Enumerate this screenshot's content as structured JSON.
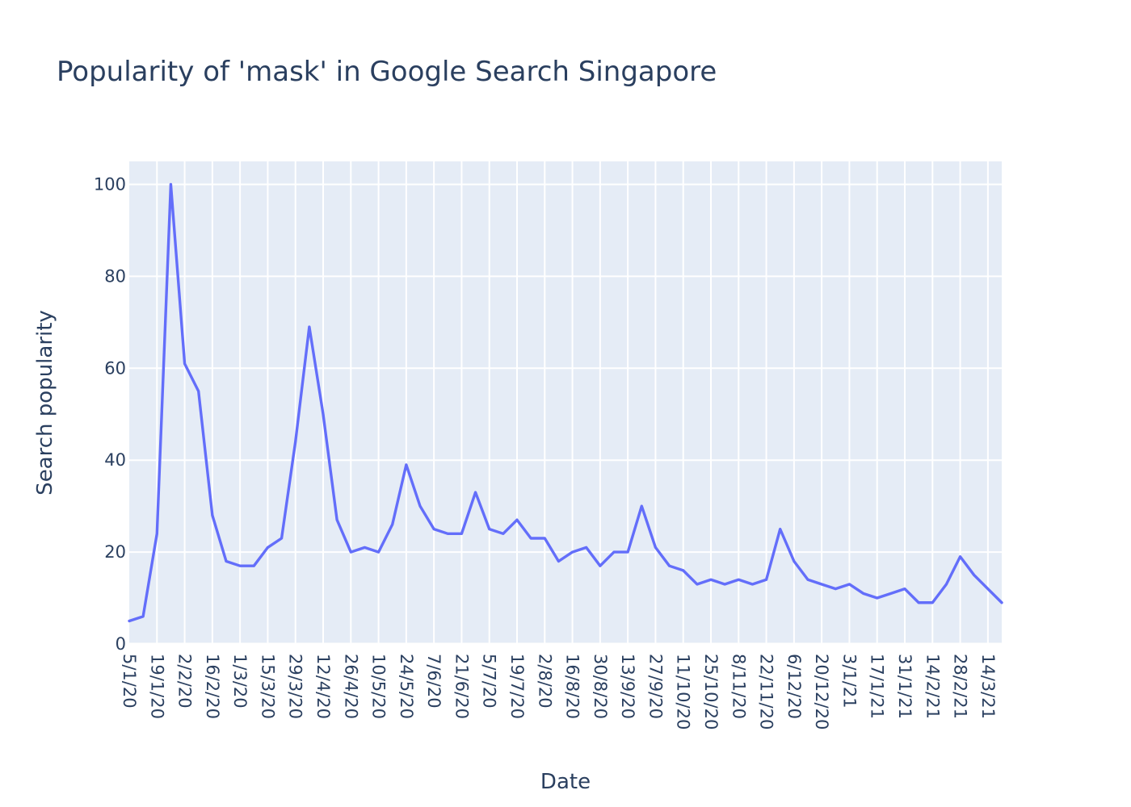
{
  "chart_data": {
    "type": "line",
    "title": "Popularity of 'mask' in Google Search Singapore",
    "xlabel": "Date",
    "ylabel": "Search popularity",
    "ylim": [
      0,
      105
    ],
    "yticks": [
      0,
      20,
      40,
      60,
      80,
      100
    ],
    "xtick_labels": [
      "5/1/20",
      "19/1/20",
      "2/2/20",
      "16/2/20",
      "1/3/20",
      "15/3/20",
      "29/3/20",
      "12/4/20",
      "26/4/20",
      "10/5/20",
      "24/5/20",
      "7/6/20",
      "21/6/20",
      "5/7/20",
      "19/7/20",
      "2/8/20",
      "16/8/20",
      "30/8/20",
      "13/9/20",
      "27/9/20",
      "11/10/20",
      "25/10/20",
      "8/11/20",
      "22/11/20",
      "6/12/20",
      "20/12/20",
      "3/1/21",
      "17/1/21",
      "31/1/21",
      "14/2/21",
      "28/2/21",
      "14/3/21"
    ],
    "grid": true,
    "colors": {
      "line": "#636efa",
      "plot_bg": "#e5ecf6",
      "grid": "#ffffff",
      "text": "#2a3f5f"
    },
    "series": [
      {
        "x": [
          "5/1/20",
          "12/1/20",
          "19/1/20",
          "26/1/20",
          "2/2/20",
          "9/2/20",
          "16/2/20",
          "23/2/20",
          "1/3/20",
          "8/3/20",
          "15/3/20",
          "22/3/20",
          "29/3/20",
          "5/4/20",
          "12/4/20",
          "19/4/20",
          "26/4/20",
          "3/5/20",
          "10/5/20",
          "17/5/20",
          "24/5/20",
          "31/5/20",
          "7/6/20",
          "14/6/20",
          "21/6/20",
          "28/6/20",
          "5/7/20",
          "12/7/20",
          "19/7/20",
          "26/7/20",
          "2/8/20",
          "9/8/20",
          "16/8/20",
          "23/8/20",
          "30/8/20",
          "6/9/20",
          "13/9/20",
          "20/9/20",
          "27/9/20",
          "4/10/20",
          "11/10/20",
          "18/10/20",
          "25/10/20",
          "1/11/20",
          "8/11/20",
          "15/11/20",
          "22/11/20",
          "29/11/20",
          "6/12/20",
          "13/12/20",
          "20/12/20",
          "27/12/20",
          "3/1/21",
          "10/1/21",
          "17/1/21",
          "24/1/21",
          "31/1/21",
          "7/2/21",
          "14/2/21",
          "21/2/21",
          "28/2/21",
          "7/3/21",
          "14/3/21",
          "21/3/21"
        ],
        "values": [
          5,
          6,
          24,
          100,
          61,
          55,
          28,
          18,
          17,
          17,
          21,
          23,
          44,
          69,
          50,
          27,
          20,
          21,
          20,
          26,
          39,
          30,
          25,
          24,
          24,
          33,
          25,
          24,
          27,
          23,
          23,
          18,
          20,
          21,
          17,
          20,
          20,
          30,
          21,
          17,
          16,
          13,
          14,
          13,
          14,
          13,
          14,
          25,
          18,
          14,
          13,
          12,
          13,
          11,
          10,
          11,
          12,
          9,
          9,
          13,
          19,
          15,
          12,
          9
        ]
      }
    ]
  }
}
